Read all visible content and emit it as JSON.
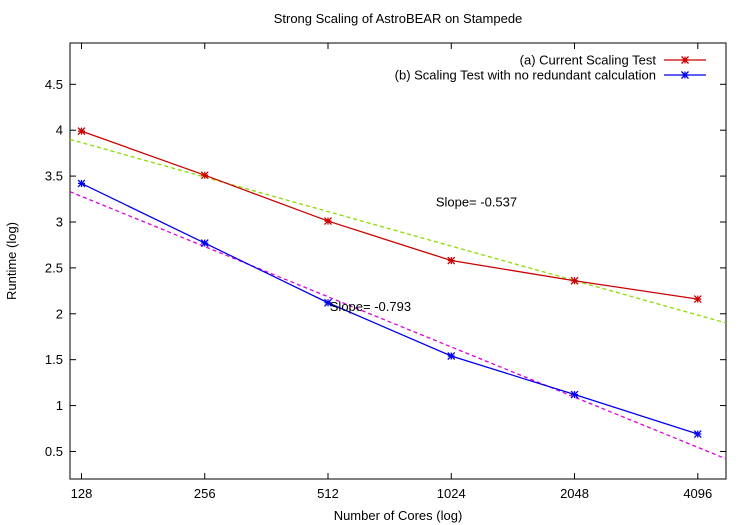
{
  "chart_data": {
    "type": "line",
    "title": "Strong Scaling of AstroBEAR on Stampede",
    "xlabel": "Number of Cores (log)",
    "ylabel": "Runtime (log)",
    "x_scale": "log2",
    "xlim": [
      120,
      4800
    ],
    "ylim": [
      0.2,
      4.95
    ],
    "x_ticks": [
      128,
      256,
      512,
      1024,
      2048,
      4096
    ],
    "x_tick_labels": [
      "128",
      "256",
      "512",
      "1024",
      "2048",
      "4096"
    ],
    "y_ticks": [
      0.5,
      1,
      1.5,
      2,
      2.5,
      3,
      3.5,
      4,
      4.5
    ],
    "y_tick_labels": [
      "0.5",
      "1",
      "1.5",
      "2",
      "2.5",
      "3",
      "3.5",
      "4",
      "4.5"
    ],
    "legend_position": "top-right",
    "grid": false,
    "x": [
      128,
      256,
      512,
      1024,
      2048,
      4096
    ],
    "series": [
      {
        "name": "(a) Current Scaling Test",
        "color": "#cc0000",
        "marker": "asterisk",
        "values": [
          3.99,
          3.51,
          3.01,
          2.58,
          2.36,
          2.16
        ]
      },
      {
        "name": "(b) Scaling Test with no redundant calculation",
        "color": "#0000ee",
        "marker": "asterisk",
        "values": [
          3.42,
          2.77,
          2.12,
          1.54,
          1.12,
          0.69
        ]
      }
    ],
    "fit_lines": [
      {
        "color": "#88dd00",
        "dash": true,
        "x": [
          120,
          4800
        ],
        "y": [
          3.9,
          1.9
        ]
      },
      {
        "color": "#dd00dd",
        "dash": true,
        "x": [
          120,
          4800
        ],
        "y": [
          3.33,
          0.42
        ]
      }
    ],
    "annotations": [
      {
        "text": "Slope= -0.537",
        "x": 1180,
        "y": 3.17
      },
      {
        "text": "Slope= -0.793",
        "x": 650,
        "y": 2.03
      }
    ]
  }
}
